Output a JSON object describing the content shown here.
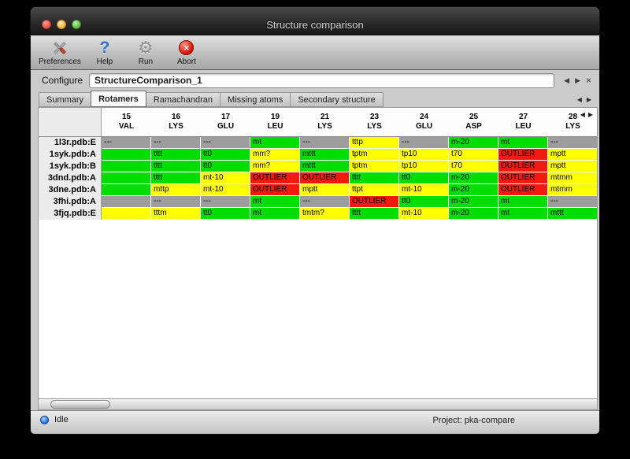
{
  "window": {
    "title": "Structure comparison"
  },
  "toolbar": {
    "buttons": [
      {
        "label": "Preferences"
      },
      {
        "label": "Help"
      },
      {
        "label": "Run"
      },
      {
        "label": "Abort"
      }
    ]
  },
  "configure": {
    "label": "Configure",
    "value": "StructureComparison_1"
  },
  "tabs": {
    "items": [
      {
        "label": "Summary",
        "active": false
      },
      {
        "label": "Rotamers",
        "active": true
      },
      {
        "label": "Ramachandran",
        "active": false
      },
      {
        "label": "Missing atoms",
        "active": false
      },
      {
        "label": "Secondary structure",
        "active": false
      }
    ]
  },
  "icons": {
    "help_glyph": "?",
    "gear_glyph": "⚙",
    "abort_glyph": "×",
    "prev_glyph": "◀",
    "next_glyph": "▶",
    "close_glyph": "×"
  },
  "colors": {
    "green": "#00dd00",
    "yellow": "#ffff00",
    "red": "#f21a10",
    "gray": "#9d9d9d"
  },
  "table": {
    "columns": [
      {
        "number": "15",
        "residue": "VAL"
      },
      {
        "number": "16",
        "residue": "LYS"
      },
      {
        "number": "17",
        "residue": "GLU"
      },
      {
        "number": "19",
        "residue": "LEU"
      },
      {
        "number": "21",
        "residue": "LYS"
      },
      {
        "number": "23",
        "residue": "LYS"
      },
      {
        "number": "24",
        "residue": "GLU"
      },
      {
        "number": "25",
        "residue": "ASP"
      },
      {
        "number": "27",
        "residue": "LEU"
      },
      {
        "number": "28",
        "residue": "LYS"
      }
    ],
    "rows": [
      {
        "label": "1l3r.pdb:E",
        "cells": [
          {
            "text": "---",
            "color": "gray"
          },
          {
            "text": "---",
            "color": "gray"
          },
          {
            "text": "---",
            "color": "gray"
          },
          {
            "text": "mt",
            "color": "green"
          },
          {
            "text": "---",
            "color": "gray"
          },
          {
            "text": "tttp",
            "color": "yellow"
          },
          {
            "text": "---",
            "color": "gray"
          },
          {
            "text": "m-20",
            "color": "green"
          },
          {
            "text": "mt",
            "color": "green"
          },
          {
            "text": "---",
            "color": "gray"
          }
        ]
      },
      {
        "label": "1syk.pdb:A",
        "cells": [
          {
            "text": "",
            "color": "green"
          },
          {
            "text": "tttt",
            "color": "green"
          },
          {
            "text": "tt0",
            "color": "green"
          },
          {
            "text": "mm?",
            "color": "yellow"
          },
          {
            "text": "mttt",
            "color": "green"
          },
          {
            "text": "tptm",
            "color": "yellow"
          },
          {
            "text": "tp10",
            "color": "yellow"
          },
          {
            "text": "t70",
            "color": "yellow"
          },
          {
            "text": "OUTLIER",
            "color": "red"
          },
          {
            "text": "mptt",
            "color": "yellow"
          }
        ]
      },
      {
        "label": "1syk.pdb:B",
        "cells": [
          {
            "text": "",
            "color": "green"
          },
          {
            "text": "tttt",
            "color": "green"
          },
          {
            "text": "tt0",
            "color": "green"
          },
          {
            "text": "mm?",
            "color": "yellow"
          },
          {
            "text": "mttt",
            "color": "green"
          },
          {
            "text": "tptm",
            "color": "yellow"
          },
          {
            "text": "tp10",
            "color": "yellow"
          },
          {
            "text": "t70",
            "color": "yellow"
          },
          {
            "text": "OUTLIER",
            "color": "red"
          },
          {
            "text": "mptt",
            "color": "yellow"
          }
        ]
      },
      {
        "label": "3dnd.pdb:A",
        "cells": [
          {
            "text": "",
            "color": "green"
          },
          {
            "text": "tttt",
            "color": "green"
          },
          {
            "text": "mt-10",
            "color": "yellow"
          },
          {
            "text": "OUTLIER",
            "color": "red"
          },
          {
            "text": "OUTLIER",
            "color": "red"
          },
          {
            "text": "tttt",
            "color": "green"
          },
          {
            "text": "tt0",
            "color": "green"
          },
          {
            "text": "m-20",
            "color": "green"
          },
          {
            "text": "OUTLIER",
            "color": "red"
          },
          {
            "text": "mtmm",
            "color": "yellow"
          }
        ]
      },
      {
        "label": "3dne.pdb:A",
        "cells": [
          {
            "text": "",
            "color": "green"
          },
          {
            "text": "mttp",
            "color": "yellow"
          },
          {
            "text": "mt-10",
            "color": "yellow"
          },
          {
            "text": "OUTLIER",
            "color": "red"
          },
          {
            "text": "mptt",
            "color": "yellow"
          },
          {
            "text": "ttpt",
            "color": "yellow"
          },
          {
            "text": "mt-10",
            "color": "yellow"
          },
          {
            "text": "m-20",
            "color": "green"
          },
          {
            "text": "OUTLIER",
            "color": "red"
          },
          {
            "text": "mtmm",
            "color": "yellow"
          }
        ]
      },
      {
        "label": "3fhi.pdb:A",
        "cells": [
          {
            "text": "",
            "color": "gray"
          },
          {
            "text": "---",
            "color": "gray"
          },
          {
            "text": "---",
            "color": "gray"
          },
          {
            "text": "mt",
            "color": "green"
          },
          {
            "text": "---",
            "color": "gray"
          },
          {
            "text": "OUTLIER",
            "color": "red"
          },
          {
            "text": "tt0",
            "color": "green"
          },
          {
            "text": "m-20",
            "color": "green"
          },
          {
            "text": "mt",
            "color": "green"
          },
          {
            "text": "---",
            "color": "gray"
          }
        ]
      },
      {
        "label": "3fjq.pdb:E",
        "cells": [
          {
            "text": "",
            "color": "yellow"
          },
          {
            "text": "tttm",
            "color": "yellow"
          },
          {
            "text": "tt0",
            "color": "green"
          },
          {
            "text": "mt",
            "color": "green"
          },
          {
            "text": "tmtm?",
            "color": "yellow"
          },
          {
            "text": "tttt",
            "color": "green"
          },
          {
            "text": "mt-10",
            "color": "yellow"
          },
          {
            "text": "m-20",
            "color": "green"
          },
          {
            "text": "mt",
            "color": "green"
          },
          {
            "text": "mttt",
            "color": "green"
          }
        ]
      }
    ]
  },
  "status": {
    "state": "Idle",
    "project": "Project: pka-compare"
  }
}
